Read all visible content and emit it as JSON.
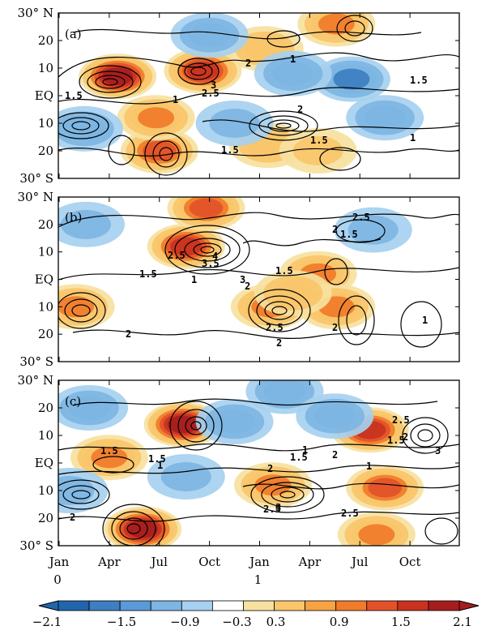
{
  "chart_data": [
    {
      "type": "heatmap",
      "panel_label": "(a)",
      "x_ticks": [
        "Jan",
        "Apr",
        "Jul",
        "Oct",
        "Jan",
        "Apr",
        "Jul",
        "Oct"
      ],
      "year_labels": [
        "0",
        "1"
      ],
      "y_ticks": [
        "30° N",
        "20",
        "10",
        "EQ",
        "10",
        "20",
        "30° S"
      ],
      "contour_labels": [
        "1.5",
        "1",
        "2",
        "1",
        "2.5",
        "3",
        "1.5",
        "2",
        "1.5",
        "1",
        "1.5"
      ],
      "warm_centers": [
        {
          "month": 3.5,
          "lat": 7,
          "value": 2.1
        },
        {
          "month": 8.6,
          "lat": 9,
          "value": 1.8
        },
        {
          "month": 6.0,
          "lat": -20,
          "value": 1.6
        },
        {
          "month": 5.8,
          "lat": -8,
          "value": 1.2
        },
        {
          "month": 16.6,
          "lat": 26,
          "value": 1.4
        },
        {
          "month": 12.3,
          "lat": 17,
          "value": 0.9
        },
        {
          "month": 12.5,
          "lat": -18,
          "value": 0.9
        },
        {
          "month": 15.5,
          "lat": -20,
          "value": 0.8
        }
      ],
      "cold_centers": [
        {
          "month": 9.0,
          "lat": 22,
          "value": -1.0
        },
        {
          "month": 17.5,
          "lat": 6,
          "value": -1.4
        },
        {
          "month": 14.0,
          "lat": 8,
          "value": -1.1
        },
        {
          "month": 1.5,
          "lat": -12,
          "value": -0.9
        },
        {
          "month": 10.5,
          "lat": -10,
          "value": -0.8
        },
        {
          "month": 19.5,
          "lat": -8,
          "value": -0.9
        }
      ]
    },
    {
      "type": "heatmap",
      "panel_label": "(b)",
      "x_ticks": [
        "Jan",
        "Apr",
        "Jul",
        "Oct",
        "Jan",
        "Apr",
        "Jul",
        "Oct"
      ],
      "year_labels": [
        "0",
        "1"
      ],
      "y_ticks": [
        "30° N",
        "20",
        "10",
        "EQ",
        "10",
        "20",
        "30° S"
      ],
      "contour_labels": [
        "2.5",
        "2",
        "1.5",
        "2.5",
        "4",
        "3.5",
        "3",
        "2",
        "1.5",
        "1",
        "1.5",
        "2",
        "2.5",
        "2",
        "2",
        "1"
      ],
      "warm_centers": [
        {
          "month": 7.6,
          "lat": 12,
          "value": 1.8
        },
        {
          "month": 8.8,
          "lat": 26,
          "value": 1.6
        },
        {
          "month": 1.0,
          "lat": -10,
          "value": 1.3
        },
        {
          "month": 12.6,
          "lat": -10,
          "value": 1.2
        },
        {
          "month": 15.5,
          "lat": 2,
          "value": 1.3
        },
        {
          "month": 16.6,
          "lat": -10,
          "value": 1.3
        },
        {
          "month": 14.0,
          "lat": -5,
          "value": 0.9
        }
      ],
      "cold_centers": [
        {
          "month": 1.6,
          "lat": 20,
          "value": -0.6
        },
        {
          "month": 18.8,
          "lat": 18,
          "value": -0.8
        }
      ]
    },
    {
      "type": "heatmap",
      "panel_label": "(c)",
      "x_ticks": [
        "Jan",
        "Apr",
        "Jul",
        "Oct",
        "Jan",
        "Apr",
        "Jul",
        "Oct"
      ],
      "year_labels": [
        "0",
        "1"
      ],
      "y_ticks": [
        "30° N",
        "20",
        "10",
        "EQ",
        "10",
        "20",
        "30° S"
      ],
      "contour_labels": [
        "1.5",
        "1.5",
        "1",
        "2",
        "1",
        "1.5",
        "2",
        "1",
        "2.5",
        "1.5",
        "2",
        "3",
        "2",
        "2.5",
        "3",
        "2.5"
      ],
      "warm_centers": [
        {
          "month": 7.4,
          "lat": 14,
          "value": 2.1
        },
        {
          "month": 5.0,
          "lat": -24,
          "value": 2.1
        },
        {
          "month": 18.6,
          "lat": 12,
          "value": 1.8
        },
        {
          "month": 3.0,
          "lat": 2,
          "value": 1.2
        },
        {
          "month": 12.8,
          "lat": -8,
          "value": 1.4
        },
        {
          "month": 19.5,
          "lat": -9,
          "value": 1.6
        },
        {
          "month": 19.0,
          "lat": -26,
          "value": 1.3
        }
      ],
      "cold_centers": [
        {
          "month": 1.8,
          "lat": 20,
          "value": -1.0
        },
        {
          "month": 10.5,
          "lat": 15,
          "value": -1.0
        },
        {
          "month": 13.5,
          "lat": 26,
          "value": -0.9
        },
        {
          "month": 16.5,
          "lat": 17,
          "value": -1.0
        },
        {
          "month": 7.6,
          "lat": -5,
          "value": -0.6
        },
        {
          "month": 0.6,
          "lat": -10,
          "value": -0.8
        }
      ]
    }
  ],
  "colorbar": {
    "tick_labels": [
      "−2.1",
      "−1.5",
      "−0.9",
      "−0.3",
      "0.3",
      "0.9",
      "1.5",
      "2.1"
    ],
    "colors": [
      "#2166ac",
      "#3d7fc1",
      "#5a9ad6",
      "#7db5e3",
      "#a6d0ef",
      "#ffffff",
      "#f7e1a0",
      "#f9c66a",
      "#f7a343",
      "#f07b2a",
      "#e2522a",
      "#c8321f",
      "#a51d1d"
    ]
  }
}
